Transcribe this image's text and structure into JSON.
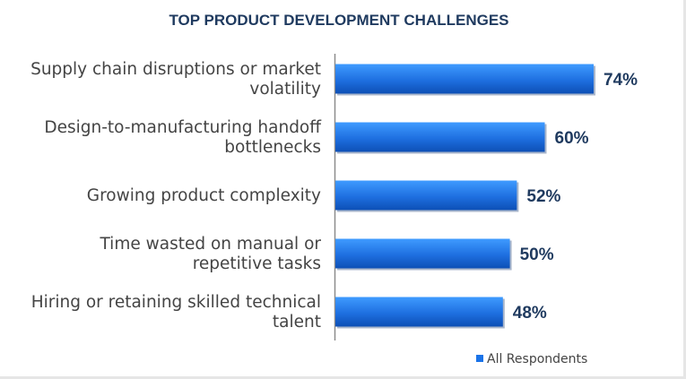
{
  "chart_data": {
    "type": "bar",
    "orientation": "horizontal",
    "title": "TOP PRODUCT DEVELOPMENT CHALLENGES",
    "categories": [
      [
        "Supply chain disruptions or market",
        "volatility"
      ],
      [
        "Design-to-manufacturing handoff",
        "bottlenecks"
      ],
      [
        "Growing product complexity"
      ],
      [
        "Time wasted on manual or",
        "repetitive tasks"
      ],
      [
        "Hiring or retaining skilled technical",
        "talent"
      ]
    ],
    "series": [
      {
        "name": "All Respondents",
        "values": [
          74,
          60,
          52,
          50,
          48
        ],
        "value_labels": [
          "74%",
          "60%",
          "52%",
          "50%",
          "48%"
        ]
      }
    ],
    "xlim": [
      0,
      100
    ],
    "legend": {
      "position": "bottom-right",
      "entries": [
        "All Respondents"
      ]
    },
    "grid": false
  },
  "colors": {
    "bar_top": "#3f9bff",
    "bar_mid": "#1e6fe0",
    "bar_bottom": "#0d4fb5",
    "legend_swatch": "#1a73e8",
    "title": "#1f3a5f",
    "axis": "#8c8c8c"
  }
}
